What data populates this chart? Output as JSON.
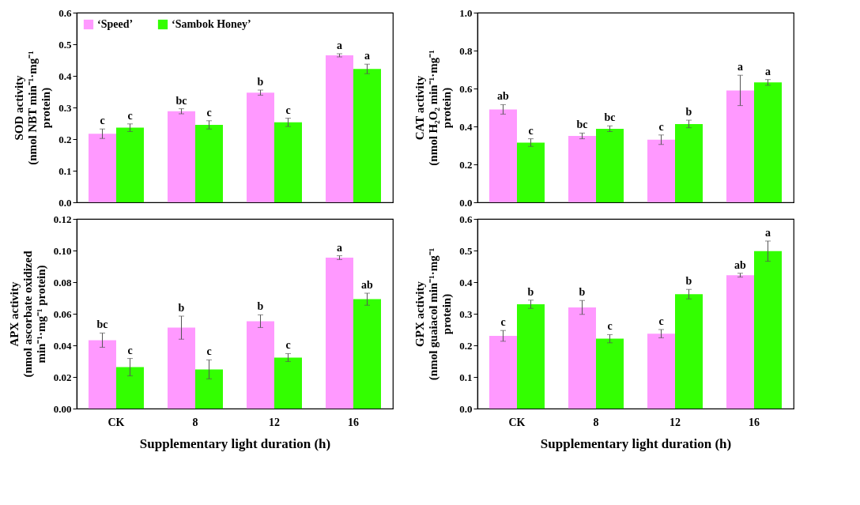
{
  "chart_data": [
    {
      "type": "bar",
      "ylabel": "SOD activity (nmol NBT min⁻¹·mg⁻¹ protein)",
      "categories": [
        "CK",
        "8",
        "12",
        "16"
      ],
      "tick_labels": "y",
      "legend": "top left",
      "series": [
        {
          "name": "‘Speed’",
          "color": "#ff99ff",
          "values": [
            0.217,
            0.288,
            0.347,
            0.465
          ],
          "errors": [
            0.015,
            0.008,
            0.008,
            0.005
          ]
        },
        {
          "name": "‘Sambok Honey’",
          "color": "#33ff00",
          "values": [
            0.236,
            0.245,
            0.253,
            0.422
          ],
          "errors": [
            0.012,
            0.013,
            0.013,
            0.015
          ]
        }
      ],
      "ylim": [
        0,
        0.6
      ],
      "yticks": [
        {
          "value": 0,
          "label": "0.0"
        },
        0.1,
        0.2,
        0.3,
        0.4,
        0.5,
        0.6
      ],
      "annotations": [
        {
          "text": "c",
          "x": "CK",
          "y": 0.217
        },
        {
          "text": "c",
          "x": "CK",
          "y": 0.236
        },
        {
          "text": "bc",
          "x": "8",
          "y": 0.288
        },
        {
          "text": "c",
          "x": "8",
          "y": 0.245
        },
        {
          "text": "b",
          "x": "12",
          "y": 0.347
        },
        {
          "text": "c",
          "x": "12",
          "y": 0.253
        },
        {
          "text": "a",
          "x": "16",
          "y": 0.465
        },
        {
          "text": "a",
          "x": "16",
          "y": 0.422
        }
      ]
    },
    {
      "type": "bar",
      "ylabel": "CAT activity (nmol H₂O₂ min⁻¹·mg⁻¹ protein)",
      "categories": [
        "CK",
        "8",
        "12",
        "16"
      ],
      "tick_labels": "y",
      "series": [
        {
          "color": "#ff99ff",
          "values": [
            0.49,
            0.35,
            0.33,
            0.59
          ],
          "errors": [
            0.025,
            0.015,
            0.025,
            0.08
          ]
        },
        {
          "color": "#33ff00",
          "values": [
            0.315,
            0.388,
            0.413,
            0.632
          ],
          "errors": [
            0.02,
            0.015,
            0.02,
            0.015
          ]
        }
      ],
      "ylim": [
        0,
        1
      ],
      "yticks": [
        {
          "value": 0,
          "label": "0.0"
        },
        0.2,
        0.4,
        0.6,
        0.8,
        {
          "value": 1,
          "label": "1.0"
        }
      ],
      "annotations": [
        {
          "text": "ab",
          "x": "CK",
          "y": 0.49
        },
        {
          "text": "c",
          "x": "CK",
          "y": 0.315
        },
        {
          "text": "bc",
          "x": "8",
          "y": 0.35
        },
        {
          "text": "bc",
          "x": "8",
          "y": 0.388
        },
        {
          "text": "c",
          "x": "12",
          "y": 0.33
        },
        {
          "text": "b",
          "x": "12",
          "y": 0.413
        },
        {
          "text": "a",
          "x": "16",
          "y": 0.59
        },
        {
          "text": "a",
          "x": "16",
          "y": 0.632
        }
      ]
    },
    {
      "type": "bar",
      "xlabel": "Supplementary light duration (h)",
      "ylabel": "APX activity (nmol ascorbate oxidized min⁻¹·mg⁻¹ protein)",
      "categories": [
        "CK",
        "8",
        "12",
        "16"
      ],
      "series": [
        {
          "color": "#ff99ff",
          "values": [
            0.0433,
            0.0512,
            0.0553,
            0.0955
          ],
          "errors": [
            0.0045,
            0.0073,
            0.004,
            0.0012
          ]
        },
        {
          "color": "#33ff00",
          "values": [
            0.0262,
            0.0248,
            0.0323,
            0.0692
          ],
          "errors": [
            0.0055,
            0.006,
            0.0025,
            0.0038
          ]
        }
      ],
      "ylim": [
        0,
        0.12
      ],
      "yticks": [
        {
          "value": 0,
          "label": "0.00"
        },
        0.02,
        0.04,
        0.06,
        0.08,
        {
          "value": 0.1,
          "label": "0.10"
        },
        0.12
      ],
      "annotations": [
        {
          "text": "bc",
          "x": "CK",
          "y": 0.0433
        },
        {
          "text": "c",
          "x": "CK",
          "y": 0.0262
        },
        {
          "text": "b",
          "x": "8",
          "y": 0.0512
        },
        {
          "text": "c",
          "x": "8",
          "y": 0.0248
        },
        {
          "text": "b",
          "x": "12",
          "y": 0.0553
        },
        {
          "text": "c",
          "x": "12",
          "y": 0.0323
        },
        {
          "text": "a",
          "x": "16",
          "y": 0.0955
        },
        {
          "text": "ab",
          "x": "16",
          "y": 0.0692
        }
      ]
    },
    {
      "type": "bar",
      "xlabel": "Supplementary light duration (h)",
      "ylabel": "GPX activity (nmol guaiacol min⁻¹·mg⁻¹ protein)",
      "categories": [
        "CK",
        "8",
        "12",
        "16"
      ],
      "series": [
        {
          "color": "#ff99ff",
          "values": [
            0.23,
            0.32,
            0.237,
            0.422
          ],
          "errors": [
            0.017,
            0.022,
            0.013,
            0.006
          ]
        },
        {
          "color": "#33ff00",
          "values": [
            0.33,
            0.221,
            0.362,
            0.498
          ],
          "errors": [
            0.013,
            0.013,
            0.015,
            0.032
          ]
        }
      ],
      "ylim": [
        0,
        0.6
      ],
      "yticks": [
        {
          "value": 0,
          "label": "0.0"
        },
        0.1,
        0.2,
        0.3,
        0.4,
        0.5,
        0.6
      ],
      "annotations": [
        {
          "text": "c",
          "x": "CK",
          "y": 0.23
        },
        {
          "text": "b",
          "x": "CK",
          "y": 0.33
        },
        {
          "text": "b",
          "x": "8",
          "y": 0.32
        },
        {
          "text": "c",
          "x": "8",
          "y": 0.221
        },
        {
          "text": "c",
          "x": "12",
          "y": 0.237
        },
        {
          "text": "b",
          "x": "12",
          "y": 0.362
        },
        {
          "text": "ab",
          "x": "16",
          "y": 0.422
        },
        {
          "text": "a",
          "x": "16",
          "y": 0.498
        }
      ]
    }
  ]
}
